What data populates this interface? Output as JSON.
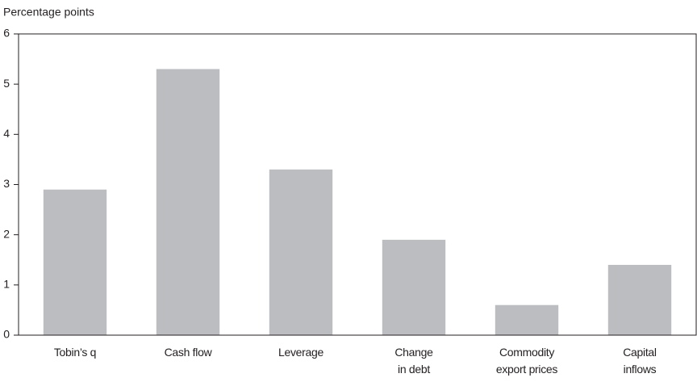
{
  "chart_data": {
    "type": "bar",
    "y_label": "Percentage points",
    "categories": [
      "Tobin’s q",
      "Cash flow",
      "Leverage",
      "Change\nin debt",
      "Commodity\nexport prices",
      "Capital\ninflows"
    ],
    "values": [
      2.9,
      5.3,
      3.3,
      1.9,
      0.6,
      1.4
    ],
    "color": "#bcbdc0",
    "ylim": [
      0,
      6
    ],
    "yticks": [
      0,
      1,
      2,
      3,
      4,
      5,
      6
    ],
    "grid": false
  }
}
